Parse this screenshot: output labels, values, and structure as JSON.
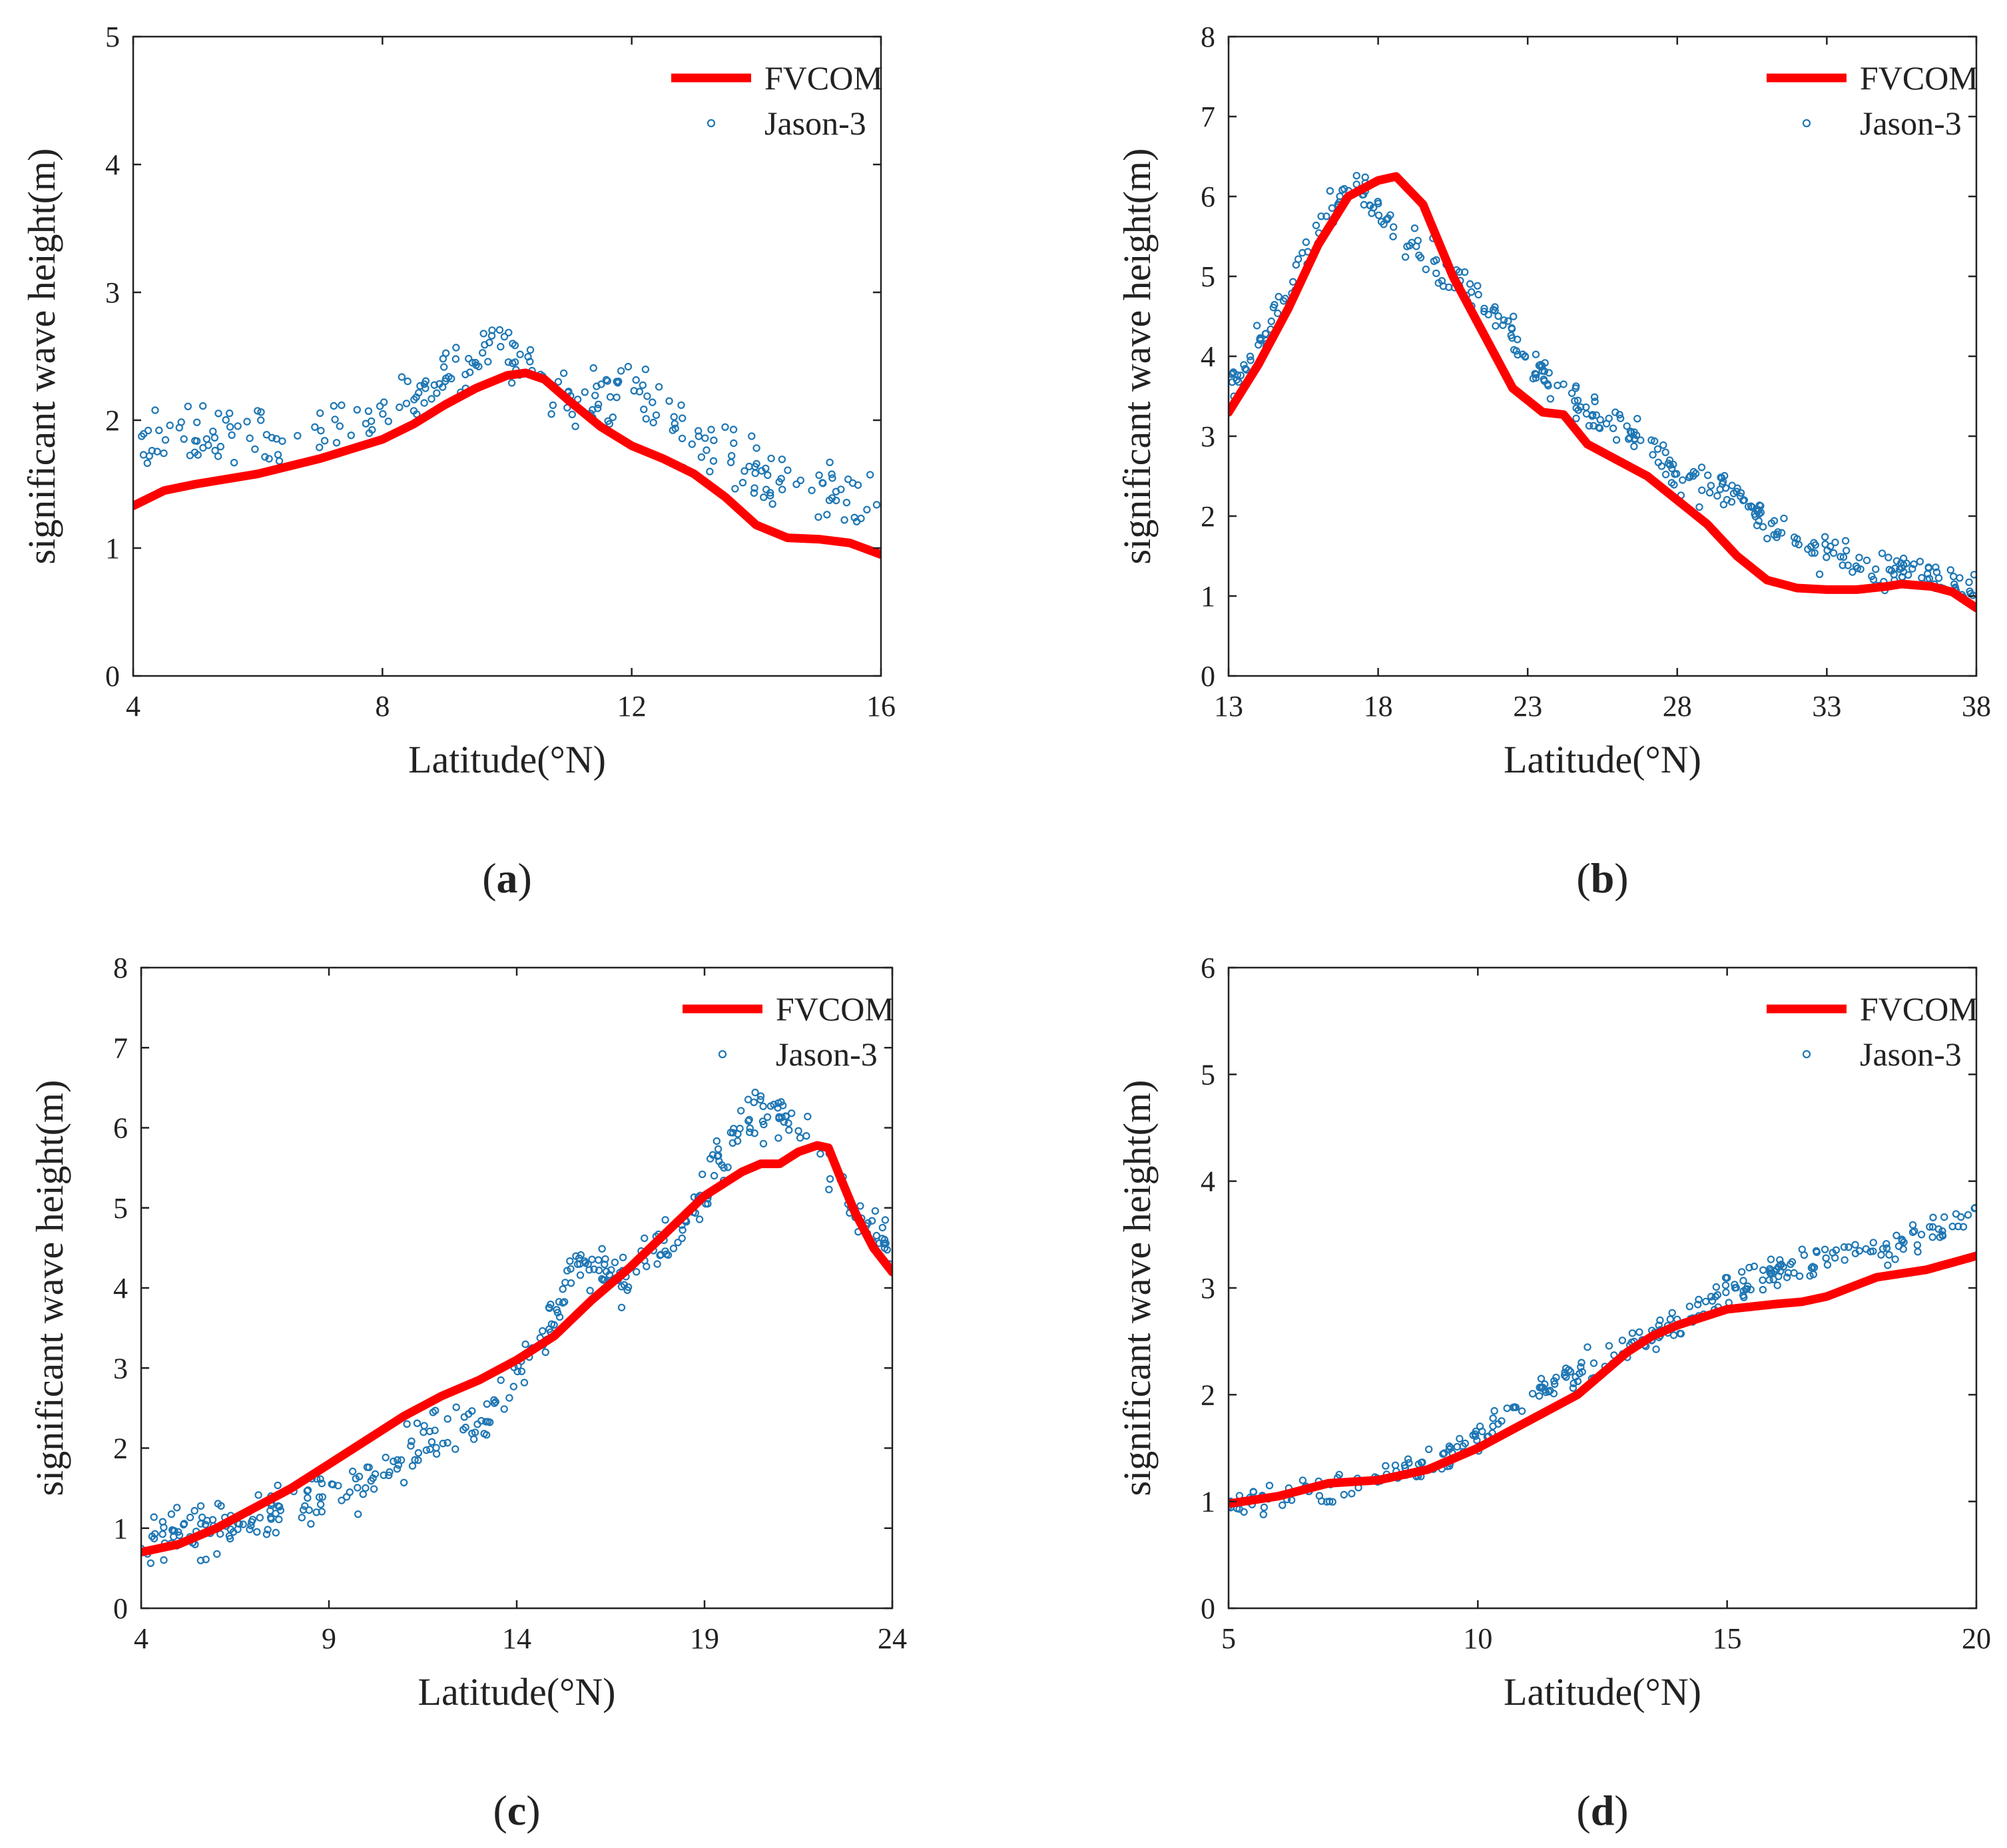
{
  "figure": {
    "background": "#ffffff"
  },
  "colors": {
    "fvcom": "#ff0000",
    "jason": "#1f77b4",
    "axis": "#222222"
  },
  "chart_data": [
    {
      "id": "a",
      "panel_label": "a",
      "type": "line+scatter",
      "xlabel": "Latitude(°N)",
      "ylabel": "significant wave height(m)",
      "xlim": [
        4,
        16
      ],
      "ylim": [
        0,
        5
      ],
      "xticks": [
        4,
        8,
        12,
        16
      ],
      "yticks": [
        0,
        1,
        2,
        3,
        4,
        5
      ],
      "legend": {
        "position": "top-right",
        "entries": [
          "FVCOM",
          "Jason-3"
        ]
      },
      "series": [
        {
          "name": "FVCOM",
          "kind": "line",
          "x": [
            4.0,
            4.5,
            5.0,
            6.0,
            7.0,
            8.0,
            8.5,
            9.0,
            9.5,
            10.0,
            10.3,
            10.6,
            11.0,
            11.5,
            12.0,
            12.5,
            13.0,
            13.5,
            14.0,
            14.5,
            15.0,
            15.5,
            16.0
          ],
          "y": [
            1.33,
            1.45,
            1.5,
            1.58,
            1.7,
            1.85,
            1.97,
            2.12,
            2.25,
            2.35,
            2.37,
            2.32,
            2.15,
            1.95,
            1.8,
            1.7,
            1.58,
            1.4,
            1.18,
            1.08,
            1.07,
            1.04,
            0.95
          ]
        },
        {
          "name": "Jason-3",
          "kind": "scatter",
          "n": 260,
          "x_range": [
            4.0,
            16.0
          ],
          "trend_x": [
            4,
            6,
            8,
            9,
            9.8,
            10.5,
            11,
            12,
            13,
            14,
            15,
            16
          ],
          "trend_y": [
            1.82,
            1.9,
            2.05,
            2.35,
            2.6,
            2.4,
            2.15,
            2.25,
            1.85,
            1.6,
            1.45,
            1.4
          ],
          "spread": 0.22
        }
      ]
    },
    {
      "id": "b",
      "panel_label": "b",
      "type": "line+scatter",
      "xlabel": "Latitude(°N)",
      "ylabel": "significant wave height(m)",
      "xlim": [
        13,
        38
      ],
      "ylim": [
        0,
        8
      ],
      "xticks": [
        13,
        18,
        23,
        28,
        33,
        38
      ],
      "yticks": [
        0,
        1,
        2,
        3,
        4,
        5,
        6,
        7,
        8
      ],
      "legend": {
        "position": "top-right",
        "entries": [
          "FVCOM",
          "Jason-3"
        ]
      },
      "series": [
        {
          "name": "FVCOM",
          "kind": "line",
          "x": [
            13,
            14,
            15,
            16,
            17,
            18,
            18.6,
            19.5,
            20.5,
            21.5,
            22.5,
            23.5,
            24.2,
            25,
            26,
            27,
            28,
            29,
            30,
            31,
            32,
            33,
            34,
            35,
            35.5,
            36.5,
            37.2,
            38
          ],
          "y": [
            3.3,
            3.9,
            4.6,
            5.4,
            6.0,
            6.2,
            6.25,
            5.9,
            5.0,
            4.3,
            3.6,
            3.3,
            3.27,
            2.9,
            2.7,
            2.5,
            2.2,
            1.9,
            1.5,
            1.2,
            1.1,
            1.08,
            1.08,
            1.12,
            1.15,
            1.12,
            1.05,
            0.85
          ]
        },
        {
          "name": "Jason-3",
          "kind": "scatter",
          "n": 360,
          "x_range": [
            13.0,
            38.0
          ],
          "trend_x": [
            13,
            14,
            15,
            16,
            17,
            17.8,
            18.5,
            19.5,
            21,
            22,
            23,
            24,
            25,
            27,
            28,
            30,
            31,
            33,
            35,
            37,
            38
          ],
          "trend_y": [
            3.6,
            4.1,
            4.8,
            5.6,
            6.1,
            6.0,
            5.6,
            5.3,
            4.8,
            4.5,
            4.0,
            3.6,
            3.3,
            2.9,
            2.5,
            2.3,
            1.9,
            1.5,
            1.3,
            1.2,
            1.1
          ],
          "spread": 0.22
        }
      ]
    },
    {
      "id": "c",
      "panel_label": "c",
      "type": "line+scatter",
      "xlabel": "Latitude(°N)",
      "ylabel": "significant wave height(m)",
      "xlim": [
        4,
        24
      ],
      "ylim": [
        0,
        8
      ],
      "xticks": [
        4,
        9,
        14,
        19,
        24
      ],
      "yticks": [
        0,
        1,
        2,
        3,
        4,
        5,
        6,
        7,
        8
      ],
      "legend": {
        "position": "top-right",
        "entries": [
          "FVCOM",
          "Jason-3"
        ]
      },
      "series": [
        {
          "name": "FVCOM",
          "kind": "line",
          "x": [
            4,
            4.5,
            5,
            6,
            7,
            8,
            9,
            10,
            11,
            12,
            13,
            14,
            15,
            16,
            17,
            18,
            19,
            20,
            20.5,
            21,
            21.5,
            22,
            22.3,
            22.6,
            23,
            23.5,
            24
          ],
          "y": [
            0.7,
            0.75,
            0.8,
            1.0,
            1.25,
            1.5,
            1.8,
            2.1,
            2.4,
            2.65,
            2.85,
            3.1,
            3.4,
            3.85,
            4.25,
            4.7,
            5.15,
            5.45,
            5.55,
            5.55,
            5.7,
            5.78,
            5.75,
            5.4,
            4.95,
            4.5,
            4.2
          ]
        },
        {
          "name": "Jason-3",
          "kind": "scatter",
          "n": 380,
          "x_range": [
            4.0,
            24.0
          ],
          "trend_x": [
            4,
            6,
            8,
            9,
            10,
            11,
            12,
            13,
            14,
            15,
            15.5,
            16,
            17,
            18,
            19,
            20,
            21,
            22,
            23,
            24
          ],
          "trend_y": [
            0.85,
            1.0,
            1.2,
            1.4,
            1.45,
            1.95,
            2.15,
            2.3,
            2.9,
            3.6,
            4.4,
            4.3,
            4.1,
            4.5,
            5.2,
            6.1,
            6.2,
            5.8,
            4.9,
            4.5
          ],
          "spread": 0.28
        }
      ]
    },
    {
      "id": "d",
      "panel_label": "d",
      "type": "line+scatter",
      "xlabel": "Latitude(°N)",
      "ylabel": "significant wave height(m)",
      "xlim": [
        5,
        20
      ],
      "ylim": [
        0,
        6
      ],
      "xticks": [
        5,
        10,
        15,
        20
      ],
      "yticks": [
        0,
        1,
        2,
        3,
        4,
        5,
        6
      ],
      "legend": {
        "position": "top-right",
        "entries": [
          "FVCOM",
          "Jason-3"
        ]
      },
      "series": [
        {
          "name": "FVCOM",
          "kind": "line",
          "x": [
            5,
            6,
            7,
            8,
            9,
            10,
            11,
            12,
            12.5,
            13,
            13.5,
            14,
            15,
            16,
            16.5,
            17,
            18,
            19,
            20
          ],
          "y": [
            0.98,
            1.05,
            1.17,
            1.2,
            1.3,
            1.5,
            1.75,
            2.0,
            2.2,
            2.4,
            2.55,
            2.65,
            2.8,
            2.85,
            2.87,
            2.92,
            3.1,
            3.17,
            3.3
          ],
          "_comment": ""
        },
        {
          "name": "Jason-3",
          "kind": "scatter",
          "n": 300,
          "x_range": [
            5.0,
            20.0
          ],
          "trend_x": [
            5,
            6,
            7,
            8,
            9,
            10,
            11,
            12,
            13,
            14,
            15,
            16,
            17,
            18,
            19,
            20
          ],
          "trend_y": [
            0.98,
            1.05,
            1.15,
            1.22,
            1.35,
            1.6,
            1.95,
            2.2,
            2.45,
            2.65,
            2.95,
            3.15,
            3.25,
            3.35,
            3.5,
            3.7
          ],
          "spread": 0.14
        }
      ]
    }
  ]
}
